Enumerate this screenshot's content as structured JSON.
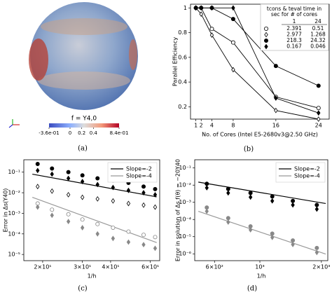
{
  "panel_a": {
    "label": "f = Y4,0",
    "caption": "(a)",
    "colorbar_lim": [
      -0.36,
      0.84
    ],
    "colorbar_ticks": [
      {
        "value": -0.36,
        "label": "-3.6e-01"
      },
      0,
      0.2,
      0.4,
      {
        "value": 0.84,
        "label": "8.4e-01"
      }
    ]
  },
  "chart_data": [
    {
      "type": "line",
      "caption": "(b)",
      "xlabel": "No. of Cores (Intel E5-2680v3@2.50 GHz)",
      "ylabel": "Parallel Efficiency",
      "x": [
        1,
        2,
        4,
        8,
        16,
        24
      ],
      "xlim": [
        0,
        26
      ],
      "xticks": [
        1,
        2,
        4,
        8,
        16,
        24
      ],
      "ylim": [
        0.1,
        1.03
      ],
      "yticks": [
        0.2,
        0.4,
        0.6,
        0.8,
        1.0
      ],
      "legend_title": [
        "tcons & teval time in",
        "sec for # of cores"
      ],
      "legend_columns": [
        1,
        24
      ],
      "series": [
        {
          "marker": "circle-open",
          "color": "#000000",
          "legend_values": [
            2.391,
            0.51
          ],
          "values": [
            1.0,
            1.0,
            0.83,
            0.72,
            0.28,
            0.19
          ]
        },
        {
          "marker": "diamond-open",
          "color": "#000000",
          "legend_values": [
            2.977,
            1.268
          ],
          "values": [
            1.0,
            0.95,
            0.78,
            0.5,
            0.17,
            0.1
          ]
        },
        {
          "marker": "circle",
          "color": "#000000",
          "legend_values": [
            218.3,
            24.32
          ],
          "values": [
            1.0,
            1.0,
            1.0,
            0.91,
            0.53,
            0.37
          ]
        },
        {
          "marker": "diamond",
          "color": "#000000",
          "legend_values": [
            0.167,
            0.046
          ],
          "values": [
            1.0,
            1.0,
            1.0,
            1.0,
            0.27,
            0.15
          ]
        }
      ]
    },
    {
      "type": "scatter",
      "caption": "(c)",
      "xlabel": "1/h",
      "ylabel": "Error in Δs(Y40)",
      "xlog": true,
      "ylog": true,
      "x": [
        19,
        22,
        26,
        30,
        35,
        41,
        48,
        56,
        63
      ],
      "xlim": [
        16.5,
        66
      ],
      "xticks": [
        {
          "value": 20,
          "label": "2×10¹"
        },
        {
          "value": 30,
          "label": "3×10¹"
        },
        {
          "value": 40,
          "label": "4×10¹"
        },
        {
          "value": 60,
          "label": "6×10¹"
        }
      ],
      "ylim": [
        5e-06,
        0.4
      ],
      "yticks": [
        {
          "value": 1e-05,
          "label": "10⁻⁵"
        },
        {
          "value": 0.0001,
          "label": "10⁻⁴"
        },
        {
          "value": 0.001,
          "label": "10⁻³"
        },
        {
          "value": 0.01,
          "label": "10⁻²"
        },
        {
          "value": 0.1,
          "label": "10⁻¹"
        }
      ],
      "series": [
        {
          "name": "Slope=-2",
          "marker": "line",
          "color": "#000000",
          "x": [
            18,
            64
          ],
          "values": [
            0.08,
            0.0063
          ]
        },
        {
          "name": "Slope=-4",
          "marker": "line",
          "color": "#999999",
          "x": [
            18,
            64
          ],
          "values": [
            0.006,
            3.8e-05
          ]
        },
        {
          "marker": "circle",
          "color": "#000000",
          "values": [
            0.25,
            0.15,
            0.1,
            0.07,
            0.05,
            0.04,
            0.03,
            0.02,
            0.015
          ]
        },
        {
          "marker": "diamond",
          "color": "#000000",
          "values": [
            0.12,
            0.08,
            0.05,
            0.035,
            0.025,
            0.018,
            0.013,
            0.01,
            0.008
          ]
        },
        {
          "marker": "diamond-open",
          "color": "#000000",
          "values": [
            0.02,
            0.012,
            0.008,
            0.006,
            0.005,
            0.004,
            0.003,
            0.0025,
            0.002
          ]
        },
        {
          "marker": "circle-open",
          "color": "#888888",
          "values": [
            0.003,
            0.0015,
            0.0009,
            0.0005,
            0.0003,
            0.0002,
            0.00013,
            9e-05,
            7e-05
          ]
        },
        {
          "marker": "diamond",
          "color": "#888888",
          "values": [
            0.002,
            0.0008,
            0.0004,
            0.0002,
            0.0001,
            6e-05,
            4e-05,
            3e-05,
            2e-05
          ]
        }
      ]
    },
    {
      "type": "scatter",
      "caption": "(d)",
      "xlabel": "1/h",
      "ylabel": "Error in solution of Δs f(θ) = −20Y40",
      "xlog": true,
      "ylog": true,
      "x": [
        550,
        700,
        900,
        1150,
        1450,
        1900
      ],
      "xlim": [
        480,
        2150
      ],
      "xticks": [
        {
          "value": 600,
          "label": "6×10²"
        },
        {
          "value": 1000,
          "label": "10³"
        },
        {
          "value": 2000,
          "label": "2×10³"
        }
      ],
      "ylim": [
        4e-07,
        0.3
      ],
      "yticks": [
        {
          "value": 1e-06,
          "label": "10⁻⁶"
        },
        {
          "value": 1e-05,
          "label": "10⁻⁵"
        },
        {
          "value": 0.0001,
          "label": "10⁻⁴"
        },
        {
          "value": 0.001,
          "label": "10⁻³"
        },
        {
          "value": 0.01,
          "label": "10⁻²"
        },
        {
          "value": 0.1,
          "label": "10⁻¹"
        }
      ],
      "series": [
        {
          "name": "Slope=-2",
          "marker": "line",
          "color": "#000000",
          "x": [
            500,
            2100
          ],
          "values": [
            0.015,
            0.00085
          ]
        },
        {
          "name": "Slope=-4",
          "marker": "line",
          "color": "#999999",
          "x": [
            500,
            2100
          ],
          "values": [
            0.0003,
            9.7e-07
          ]
        },
        {
          "marker": "circle",
          "color": "#000000",
          "values": [
            0.012,
            0.006,
            0.0035,
            0.0022,
            0.0012,
            0.0007
          ]
        },
        {
          "marker": "diamond",
          "color": "#000000",
          "values": [
            0.007,
            0.0035,
            0.002,
            0.0012,
            0.0007,
            0.0004
          ]
        },
        {
          "marker": "circle",
          "color": "#888888",
          "values": [
            0.0005,
            0.00012,
            4e-05,
            1.5e-05,
            6e-06,
            2.2e-06
          ]
        },
        {
          "marker": "diamond",
          "color": "#888888",
          "values": [
            0.0003,
            7e-05,
            2.5e-05,
            9e-06,
            3.5e-06,
            1.2e-06
          ]
        }
      ]
    }
  ]
}
